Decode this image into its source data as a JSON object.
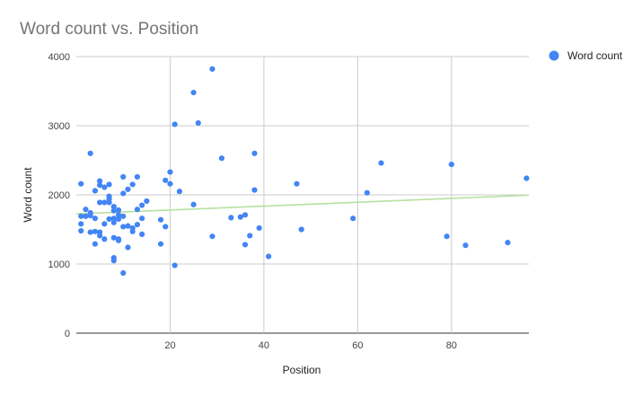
{
  "chart_data": {
    "type": "scatter",
    "title": "Word count vs. Position",
    "xlabel": "Position",
    "ylabel": "Word count",
    "xlim": [
      0,
      96.5
    ],
    "ylim": [
      0,
      4000
    ],
    "x_ticks": [
      20,
      40,
      60,
      80
    ],
    "y_ticks": [
      0,
      1000,
      2000,
      3000,
      4000
    ],
    "grid": true,
    "legend_position": "right",
    "series": [
      {
        "name": "Word count",
        "color": "#4285f4",
        "points": [
          [
            1,
            2160
          ],
          [
            1,
            1690
          ],
          [
            1,
            1580
          ],
          [
            1,
            1480
          ],
          [
            2,
            1790
          ],
          [
            2,
            1690
          ],
          [
            3,
            2600
          ],
          [
            3,
            1740
          ],
          [
            3,
            1700
          ],
          [
            3,
            1460
          ],
          [
            4,
            2060
          ],
          [
            4,
            1660
          ],
          [
            4,
            1470
          ],
          [
            4,
            1290
          ],
          [
            5,
            2200
          ],
          [
            5,
            2140
          ],
          [
            5,
            1890
          ],
          [
            5,
            1460
          ],
          [
            5,
            1410
          ],
          [
            6,
            2110
          ],
          [
            6,
            1890
          ],
          [
            6,
            1580
          ],
          [
            6,
            1360
          ],
          [
            7,
            2150
          ],
          [
            7,
            1980
          ],
          [
            7,
            1940
          ],
          [
            7,
            1890
          ],
          [
            7,
            1650
          ],
          [
            8,
            1830
          ],
          [
            8,
            1770
          ],
          [
            8,
            1660
          ],
          [
            8,
            1600
          ],
          [
            8,
            1380
          ],
          [
            8,
            1090
          ],
          [
            8,
            1050
          ],
          [
            9,
            1780
          ],
          [
            9,
            1710
          ],
          [
            9,
            1650
          ],
          [
            9,
            1360
          ],
          [
            9,
            1340
          ],
          [
            10,
            2260
          ],
          [
            10,
            2020
          ],
          [
            10,
            1690
          ],
          [
            10,
            1540
          ],
          [
            10,
            870
          ],
          [
            11,
            2080
          ],
          [
            11,
            1550
          ],
          [
            11,
            1240
          ],
          [
            12,
            2150
          ],
          [
            12,
            1520
          ],
          [
            12,
            1470
          ],
          [
            13,
            2260
          ],
          [
            13,
            1790
          ],
          [
            13,
            1570
          ],
          [
            14,
            1850
          ],
          [
            14,
            1660
          ],
          [
            14,
            1430
          ],
          [
            15,
            1910
          ],
          [
            18,
            1640
          ],
          [
            18,
            1290
          ],
          [
            19,
            2210
          ],
          [
            19,
            1540
          ],
          [
            20,
            2330
          ],
          [
            20,
            2160
          ],
          [
            21,
            3020
          ],
          [
            21,
            980
          ],
          [
            22,
            2050
          ],
          [
            25,
            3480
          ],
          [
            25,
            1860
          ],
          [
            26,
            3040
          ],
          [
            29,
            3820
          ],
          [
            29,
            1400
          ],
          [
            31,
            2530
          ],
          [
            33,
            1670
          ],
          [
            35,
            1680
          ],
          [
            36,
            1710
          ],
          [
            36,
            1280
          ],
          [
            37,
            1410
          ],
          [
            38,
            2600
          ],
          [
            38,
            2070
          ],
          [
            39,
            1520
          ],
          [
            41,
            1110
          ],
          [
            47,
            2160
          ],
          [
            48,
            1500
          ],
          [
            59,
            1660
          ],
          [
            62,
            2030
          ],
          [
            65,
            2460
          ],
          [
            79,
            1400
          ],
          [
            80,
            2440
          ],
          [
            83,
            1270
          ],
          [
            92,
            1310
          ],
          [
            96,
            2240
          ]
        ]
      }
    ],
    "trendline": {
      "type": "linear",
      "color": "#b7e1a1",
      "x": [
        0,
        96.5
      ],
      "y": [
        1725,
        1995
      ]
    }
  }
}
